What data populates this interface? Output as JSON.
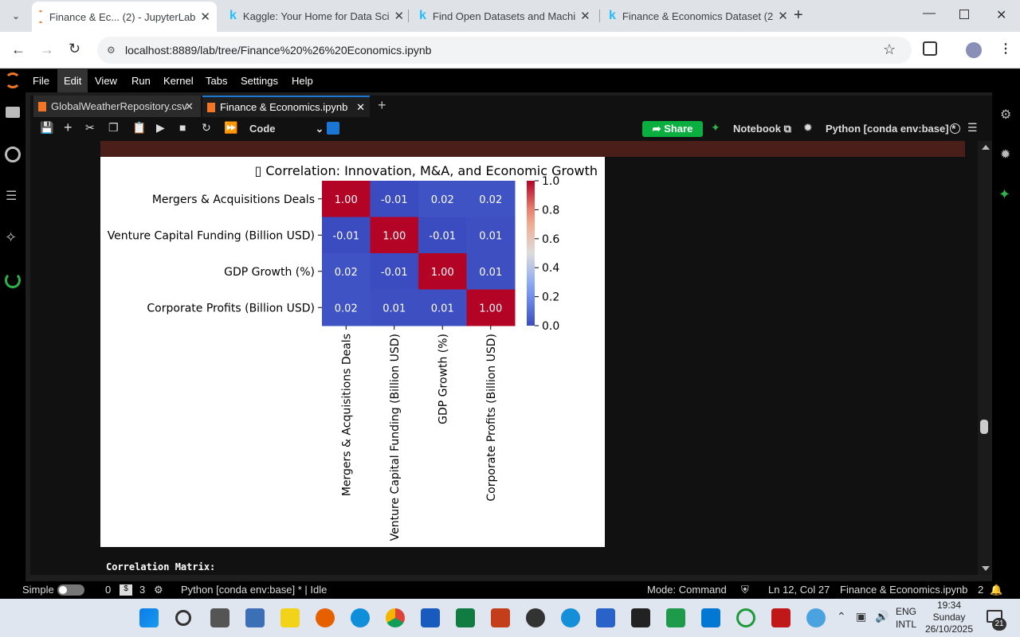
{
  "browser": {
    "tabs": [
      {
        "title": "Finance & Ec... (2) - JupyterLab"
      },
      {
        "title": "Kaggle: Your Home for Data Sci"
      },
      {
        "title": "Find Open Datasets and Machi"
      },
      {
        "title": "Finance & Economics Dataset (2"
      }
    ],
    "url": "localhost:8889/lab/tree/Finance%20%26%20Economics.ipynb"
  },
  "menu": [
    "File",
    "Edit",
    "View",
    "Run",
    "Kernel",
    "Tabs",
    "Settings",
    "Help"
  ],
  "doc_tabs": [
    "GlobalWeatherRepository.csv",
    "Finance & Economics.ipynb"
  ],
  "toolbar": {
    "cell_type": "Code",
    "share_label": "Share",
    "notebook_label": "Notebook",
    "kernel_label": "Python [conda env:base] *"
  },
  "chart_data": {
    "type": "heatmap",
    "title": "▯ Correlation: Innovation, M&A, and Economic Growth",
    "rows": [
      "Mergers & Acquisitions Deals",
      "Venture Capital Funding (Billion USD)",
      "GDP Growth (%)",
      "Corporate Profits (Billion USD)"
    ],
    "columns": [
      "Mergers & Acquisitions Deals",
      "Venture Capital Funding (Billion USD)",
      "GDP Growth (%)",
      "Corporate Profits (Billion USD)"
    ],
    "values": [
      [
        1.0,
        -0.01,
        0.02,
        0.02
      ],
      [
        -0.01,
        1.0,
        -0.01,
        0.01
      ],
      [
        0.02,
        -0.01,
        1.0,
        0.01
      ],
      [
        0.02,
        0.01,
        0.01,
        1.0
      ]
    ],
    "labels": [
      [
        "1.00",
        "-0.01",
        "0.02",
        "0.02"
      ],
      [
        "-0.01",
        "1.00",
        "-0.01",
        "0.01"
      ],
      [
        "0.02",
        "-0.01",
        "1.00",
        "0.01"
      ],
      [
        "0.02",
        "0.01",
        "0.01",
        "1.00"
      ]
    ],
    "colorbar_ticks": [
      "1.0",
      "0.8",
      "0.6",
      "0.4",
      "0.2",
      "0.0"
    ],
    "colormap": "coolwarm",
    "colors": {
      "high": "#b40426",
      "low": "#3b4cc0"
    }
  },
  "output_text": "Correlation Matrix:",
  "status": {
    "mode_label": "Simple",
    "count1": "0",
    "count2": "3",
    "kernel": "Python [conda env:base] * | Idle",
    "mode": "Mode: Command",
    "position": "Ln 12, Col 27",
    "filename": "Finance & Economics.ipynb",
    "notif": "2"
  },
  "taskbar": {
    "lang1": "ENG",
    "lang2": "INTL",
    "time": "19:34",
    "day": "Sunday",
    "date": "26/10/2025",
    "badge": "21"
  }
}
